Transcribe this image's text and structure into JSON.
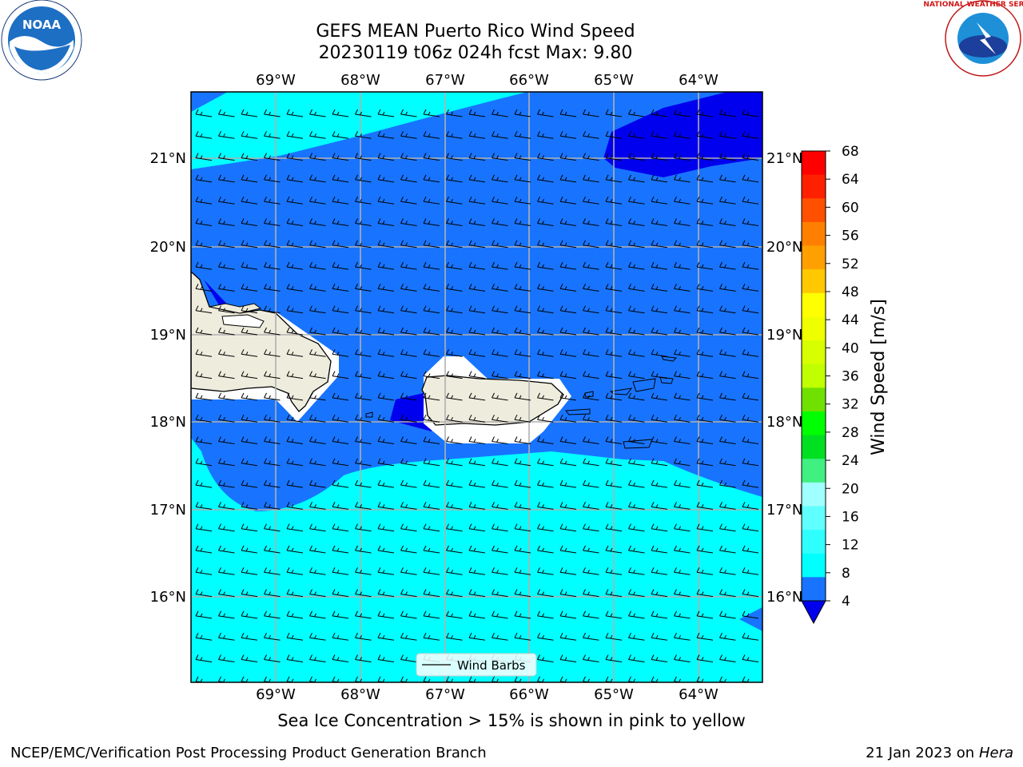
{
  "title": {
    "line1": "GEFS MEAN Puerto Rico Wind Speed",
    "line2": "20230119 t06z 024h fcst   Max: 9.80"
  },
  "logos": {
    "left": "NOAA",
    "right": "NATIONAL WEATHER SERVICE"
  },
  "map": {
    "lon_ticks": [
      "69°W",
      "68°W",
      "67°W",
      "66°W",
      "65°W",
      "64°W"
    ],
    "lat_ticks": [
      "21°N",
      "20°N",
      "19°N",
      "18°N",
      "17°N",
      "16°N"
    ],
    "legend_label": "Wind Barbs",
    "fill_colors": {
      "4-8": "#1874ff",
      "8-12": "#00ffff",
      "below-4": "#0000ee",
      "land": "#eeecdd",
      "masked": "#ffffff"
    }
  },
  "colorbar": {
    "label": "Wind Speed [m/s]",
    "ticks": [
      "68",
      "64",
      "60",
      "56",
      "52",
      "48",
      "44",
      "40",
      "36",
      "32",
      "28",
      "24",
      "20",
      "16",
      "12",
      "8",
      "4"
    ],
    "colors": [
      "#ff0000",
      "#ff2000",
      "#ff5000",
      "#ff8000",
      "#ffa000",
      "#ffc800",
      "#ffff00",
      "#f0ff00",
      "#d8ff00",
      "#c0ff00",
      "#70e000",
      "#00ff00",
      "#00e020",
      "#40f080",
      "#a0ffff",
      "#60ffff",
      "#30ffff",
      "#00ffff",
      "#1874ff"
    ],
    "extend_color": "#0000ee"
  },
  "caption": "Sea Ice Concentration > 15% is shown in pink to yellow",
  "footer": {
    "left": "NCEP/EMC/Verification Post Processing Product Generation Branch",
    "right_date": "21 Jan 2023 on ",
    "right_host": "Hera"
  }
}
